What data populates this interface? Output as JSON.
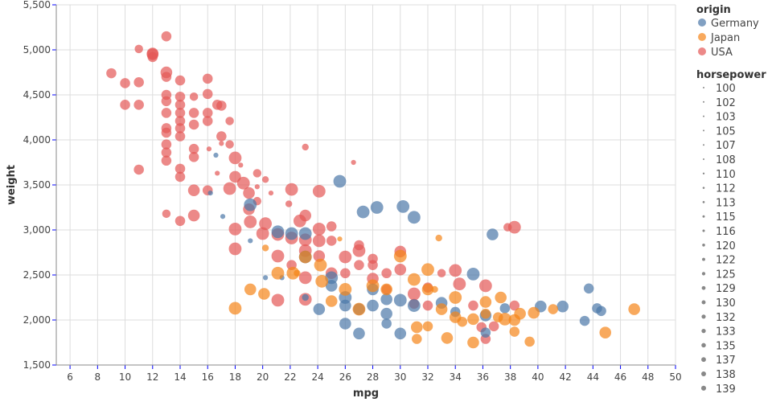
{
  "chart_data": {
    "type": "scatter",
    "title": "",
    "xlabel": "mpg",
    "ylabel": "weight",
    "xlim": [
      5,
      50
    ],
    "ylim": [
      1500,
      5500
    ],
    "x_ticks": [
      "6",
      "8",
      "10",
      "12",
      "14",
      "16",
      "18",
      "20",
      "22",
      "24",
      "26",
      "28",
      "30",
      "32",
      "34",
      "36",
      "38",
      "40",
      "42",
      "44",
      "46",
      "48",
      "50"
    ],
    "y_ticks": [
      "1,500",
      "2,000",
      "2,500",
      "3,000",
      "3,500",
      "4,000",
      "4,500",
      "5,000",
      "5,500"
    ],
    "grid": true,
    "legend_position": "right",
    "color_legend": {
      "title": "origin",
      "entries": [
        {
          "name": "Germany",
          "color": "#4c78a8"
        },
        {
          "name": "Japan",
          "color": "#f58518"
        },
        {
          "name": "USA",
          "color": "#e45756"
        }
      ]
    },
    "size_legend": {
      "title": "horsepower",
      "entries": [
        "100",
        "102",
        "103",
        "105",
        "107",
        "108",
        "110",
        "112",
        "113",
        "115",
        "116",
        "120",
        "122",
        "125",
        "129",
        "130",
        "132",
        "133",
        "135",
        "137",
        "138",
        "139"
      ]
    },
    "point_fields": [
      "mpg",
      "weight",
      "horsepower"
    ],
    "series": [
      {
        "name": "USA",
        "color": "#e45756",
        "points": [
          [
            9,
            4740,
            180
          ],
          [
            10,
            4630,
            180
          ],
          [
            11,
            4640,
            180
          ],
          [
            10,
            4390,
            180
          ],
          [
            11,
            4390,
            180
          ],
          [
            11,
            5010,
            154
          ],
          [
            12,
            4960,
            210
          ],
          [
            12,
            4950,
            210
          ],
          [
            12,
            4920,
            180
          ],
          [
            13,
            5150,
            180
          ],
          [
            13,
            4750,
            210
          ],
          [
            13,
            4700,
            180
          ],
          [
            13,
            4500,
            180
          ],
          [
            13,
            4430,
            180
          ],
          [
            13,
            4300,
            180
          ],
          [
            13,
            4130,
            180
          ],
          [
            13,
            4080,
            180
          ],
          [
            13,
            3950,
            180
          ],
          [
            13,
            3860,
            180
          ],
          [
            13,
            3770,
            180
          ],
          [
            13,
            3180,
            154
          ],
          [
            14,
            4660,
            180
          ],
          [
            14,
            4480,
            180
          ],
          [
            14,
            4390,
            180
          ],
          [
            14,
            4300,
            180
          ],
          [
            14,
            4210,
            180
          ],
          [
            14,
            4130,
            180
          ],
          [
            14,
            4040,
            180
          ],
          [
            14,
            3680,
            180
          ],
          [
            14,
            3590,
            180
          ],
          [
            14,
            3100,
            180
          ],
          [
            11,
            3670,
            180
          ],
          [
            15,
            4480,
            154
          ],
          [
            15,
            4300,
            180
          ],
          [
            15,
            4170,
            180
          ],
          [
            15,
            3900,
            180
          ],
          [
            15,
            3810,
            180
          ],
          [
            15,
            3440,
            210
          ],
          [
            15,
            3160,
            210
          ],
          [
            16,
            4680,
            180
          ],
          [
            16,
            4510,
            180
          ],
          [
            16,
            4300,
            180
          ],
          [
            16,
            4210,
            180
          ],
          [
            16,
            3440,
            180
          ],
          [
            16.7,
            4390,
            180
          ],
          [
            17,
            4380,
            180
          ],
          [
            17.6,
            4210,
            154
          ],
          [
            17,
            4040,
            180
          ],
          [
            17.6,
            3950,
            154
          ],
          [
            18,
            3800,
            230
          ],
          [
            18,
            3590,
            210
          ],
          [
            18,
            3010,
            230
          ],
          [
            18,
            2790,
            230
          ],
          [
            17.6,
            3460,
            230
          ],
          [
            18.6,
            3520,
            230
          ],
          [
            19,
            3410,
            210
          ],
          [
            19,
            3230,
            210
          ],
          [
            19.6,
            3630,
            154
          ],
          [
            19.6,
            3320,
            154
          ],
          [
            19.1,
            3090,
            230
          ],
          [
            20.2,
            3070,
            230
          ],
          [
            20,
            2960,
            230
          ],
          [
            21.1,
            2950,
            230
          ],
          [
            21.1,
            2710,
            230
          ],
          [
            21.1,
            2220,
            230
          ],
          [
            22.1,
            3450,
            230
          ],
          [
            22.1,
            2910,
            230
          ],
          [
            22.1,
            2610,
            180
          ],
          [
            22.7,
            3100,
            230
          ],
          [
            23.1,
            3160,
            210
          ],
          [
            23.1,
            2890,
            230
          ],
          [
            23.1,
            2770,
            230
          ],
          [
            23.1,
            2470,
            230
          ],
          [
            23.1,
            2230,
            230
          ],
          [
            24.1,
            3430,
            230
          ],
          [
            24.1,
            3010,
            230
          ],
          [
            24.1,
            2880,
            230
          ],
          [
            24.1,
            2710,
            210
          ],
          [
            25,
            3040,
            180
          ],
          [
            25,
            2880,
            180
          ],
          [
            25,
            2520,
            210
          ],
          [
            26,
            2700,
            230
          ],
          [
            26,
            2520,
            180
          ],
          [
            27,
            2610,
            180
          ],
          [
            27,
            2830,
            180
          ],
          [
            27,
            2770,
            230
          ],
          [
            28,
            2680,
            180
          ],
          [
            28,
            2610,
            180
          ],
          [
            28,
            2460,
            210
          ],
          [
            29,
            2520,
            180
          ],
          [
            29,
            2340,
            180
          ],
          [
            30,
            2760,
            210
          ],
          [
            30,
            2560,
            210
          ],
          [
            31,
            2290,
            230
          ],
          [
            31,
            2180,
            180
          ],
          [
            32,
            2360,
            180
          ],
          [
            32,
            2160,
            180
          ],
          [
            33,
            2520,
            154
          ],
          [
            34,
            2550,
            230
          ],
          [
            34.3,
            2400,
            230
          ],
          [
            35.3,
            2160,
            180
          ],
          [
            36.2,
            2380,
            230
          ],
          [
            38.3,
            3030,
            230
          ],
          [
            38.3,
            2160,
            180
          ],
          [
            35.9,
            1920,
            180
          ],
          [
            36.2,
            1790,
            180
          ],
          [
            36.8,
            1930,
            180
          ],
          [
            37.8,
            3030,
            154
          ],
          [
            21.9,
            3290,
            133
          ],
          [
            20.6,
            3410,
            116
          ],
          [
            20.2,
            3560,
            133
          ],
          [
            19.6,
            3480,
            116
          ],
          [
            23.1,
            3920,
            133
          ],
          [
            26.6,
            3750,
            116
          ],
          [
            16.1,
            3900,
            116
          ],
          [
            16.7,
            3630,
            116
          ],
          [
            17,
            3960,
            116
          ],
          [
            18.4,
            3720,
            116
          ]
        ]
      },
      {
        "name": "Germany",
        "color": "#4c78a8",
        "points": [
          [
            19.1,
            3280,
            230
          ],
          [
            21.1,
            2980,
            230
          ],
          [
            22.1,
            2960,
            230
          ],
          [
            23.1,
            2960,
            230
          ],
          [
            23.1,
            2700,
            230
          ],
          [
            25,
            2470,
            230
          ],
          [
            25,
            2380,
            210
          ],
          [
            24.1,
            2120,
            210
          ],
          [
            26,
            2250,
            230
          ],
          [
            26,
            2160,
            210
          ],
          [
            26,
            1960,
            210
          ],
          [
            27,
            1850,
            210
          ],
          [
            27,
            2120,
            210
          ],
          [
            28,
            2160,
            210
          ],
          [
            28,
            2340,
            210
          ],
          [
            29,
            1960,
            180
          ],
          [
            29,
            2230,
            210
          ],
          [
            29,
            2070,
            210
          ],
          [
            30,
            2220,
            230
          ],
          [
            30,
            1850,
            210
          ],
          [
            31,
            2160,
            230
          ],
          [
            31,
            3140,
            230
          ],
          [
            30.2,
            3260,
            230
          ],
          [
            25.6,
            3540,
            230
          ],
          [
            27.3,
            3200,
            230
          ],
          [
            28.3,
            3250,
            230
          ],
          [
            33,
            2190,
            210
          ],
          [
            34,
            2090,
            180
          ],
          [
            35.3,
            2510,
            230
          ],
          [
            36.2,
            2050,
            210
          ],
          [
            36.2,
            1860,
            180
          ],
          [
            36.7,
            2950,
            210
          ],
          [
            37.6,
            2130,
            180
          ],
          [
            40.2,
            2150,
            210
          ],
          [
            41.8,
            2150,
            210
          ],
          [
            43.4,
            1990,
            180
          ],
          [
            43.7,
            2350,
            180
          ],
          [
            44.3,
            2130,
            180
          ],
          [
            44.6,
            2100,
            180
          ],
          [
            16.6,
            3830,
            116
          ],
          [
            16.2,
            3410,
            116
          ],
          [
            17.1,
            3150,
            116
          ],
          [
            19.1,
            2880,
            116
          ],
          [
            20.2,
            2470,
            116
          ],
          [
            21.4,
            2470,
            116
          ],
          [
            23.1,
            2250,
            133
          ]
        ]
      },
      {
        "name": "Japan",
        "color": "#f58518",
        "points": [
          [
            18,
            2130,
            230
          ],
          [
            19.1,
            2340,
            210
          ],
          [
            20.1,
            2290,
            210
          ],
          [
            21.1,
            2520,
            230
          ],
          [
            22.2,
            2520,
            230
          ],
          [
            23.1,
            2700,
            230
          ],
          [
            24.2,
            2610,
            230
          ],
          [
            24.3,
            2430,
            230
          ],
          [
            25,
            2210,
            210
          ],
          [
            26,
            2340,
            230
          ],
          [
            27,
            2120,
            230
          ],
          [
            28,
            2380,
            230
          ],
          [
            29,
            2340,
            210
          ],
          [
            30,
            2710,
            230
          ],
          [
            31,
            2450,
            230
          ],
          [
            32,
            2560,
            230
          ],
          [
            32,
            2340,
            210
          ],
          [
            33,
            2120,
            210
          ],
          [
            34,
            2250,
            230
          ],
          [
            34,
            2030,
            210
          ],
          [
            35.3,
            1750,
            210
          ],
          [
            35.3,
            2010,
            210
          ],
          [
            36.2,
            2200,
            210
          ],
          [
            36.2,
            2070,
            180
          ],
          [
            37.1,
            2030,
            180
          ],
          [
            37.3,
            2250,
            210
          ],
          [
            37.6,
            2010,
            230
          ],
          [
            38.3,
            2000,
            210
          ],
          [
            38.7,
            2070,
            210
          ],
          [
            39.4,
            1760,
            180
          ],
          [
            39.7,
            2080,
            210
          ],
          [
            41.1,
            2120,
            180
          ],
          [
            44.9,
            1860,
            210
          ],
          [
            47,
            2120,
            210
          ],
          [
            32.8,
            2910,
            133
          ],
          [
            25.6,
            2900,
            116
          ],
          [
            20.2,
            2800,
            133
          ],
          [
            22.5,
            2520,
            133
          ],
          [
            32.5,
            2340,
            133
          ],
          [
            31.2,
            1920,
            210
          ],
          [
            31.2,
            1790,
            180
          ],
          [
            32,
            1930,
            180
          ],
          [
            33.4,
            1800,
            210
          ],
          [
            34.5,
            1980,
            180
          ],
          [
            38.3,
            1870,
            180
          ]
        ]
      }
    ]
  }
}
